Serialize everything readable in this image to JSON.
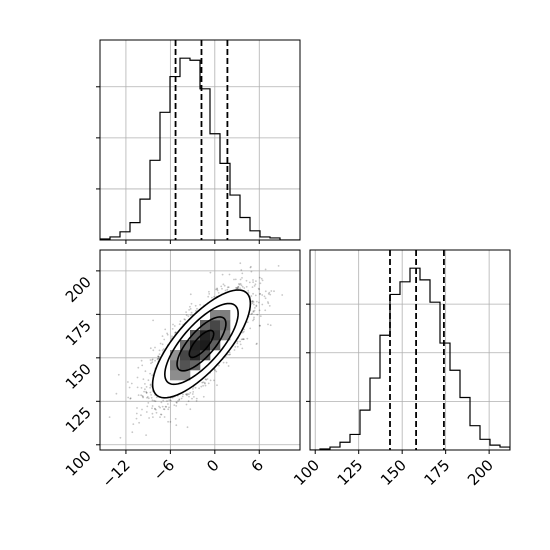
{
  "chart_data": {
    "type": "corner",
    "title": "",
    "parameters": [
      {
        "index": 0,
        "xlim": [
          -15.5,
          11.5
        ],
        "ticks": [
          -12,
          -6,
          0,
          6
        ],
        "tick_labels": [
          "−12",
          "−6",
          "0",
          "6"
        ],
        "quantiles": [
          -5.3,
          -1.8,
          1.7
        ]
      },
      {
        "index": 1,
        "ylim": [
          97,
          212
        ],
        "ticks": [
          100,
          125,
          150,
          175,
          200
        ],
        "tick_labels": [
          "100",
          "125",
          "150",
          "175",
          "200"
        ],
        "quantiles": [
          143,
          158,
          174
        ]
      }
    ],
    "hist_x": {
      "type": "histogram",
      "bin_edges": [
        -15.5,
        -14.15,
        -12.8,
        -11.45,
        -10.1,
        -8.75,
        -7.4,
        -6.05,
        -4.7,
        -3.35,
        -2.0,
        -0.65,
        0.7,
        2.05,
        3.4,
        4.75,
        6.1,
        7.45,
        8.8,
        10.15,
        11.5
      ],
      "counts": [
        1,
        3,
        8,
        17,
        40,
        78,
        125,
        160,
        178,
        176,
        148,
        104,
        75,
        44,
        22,
        9,
        3,
        2,
        0,
        0
      ]
    },
    "hist_y": {
      "type": "histogram",
      "bin_edges": [
        97,
        102.75,
        108.5,
        114.25,
        120,
        125.75,
        131.5,
        137.25,
        143,
        148.75,
        154.5,
        160.25,
        166,
        171.75,
        177.5,
        183.25,
        189,
        194.75,
        200.5,
        206.25,
        212
      ],
      "counts": [
        0,
        1,
        3,
        8,
        16,
        41,
        74,
        118,
        160,
        173,
        187,
        175,
        152,
        110,
        82,
        54,
        25,
        11,
        5,
        3
      ]
    },
    "scatter2d": {
      "type": "scatter",
      "center": [
        -1.8,
        158
      ],
      "std": [
        3.3,
        15.5
      ],
      "correlation": 0.75,
      "contour_levels_sigma": [
        0.5,
        1.0,
        1.5,
        2.0
      ]
    },
    "grid": true,
    "legend": "none"
  }
}
